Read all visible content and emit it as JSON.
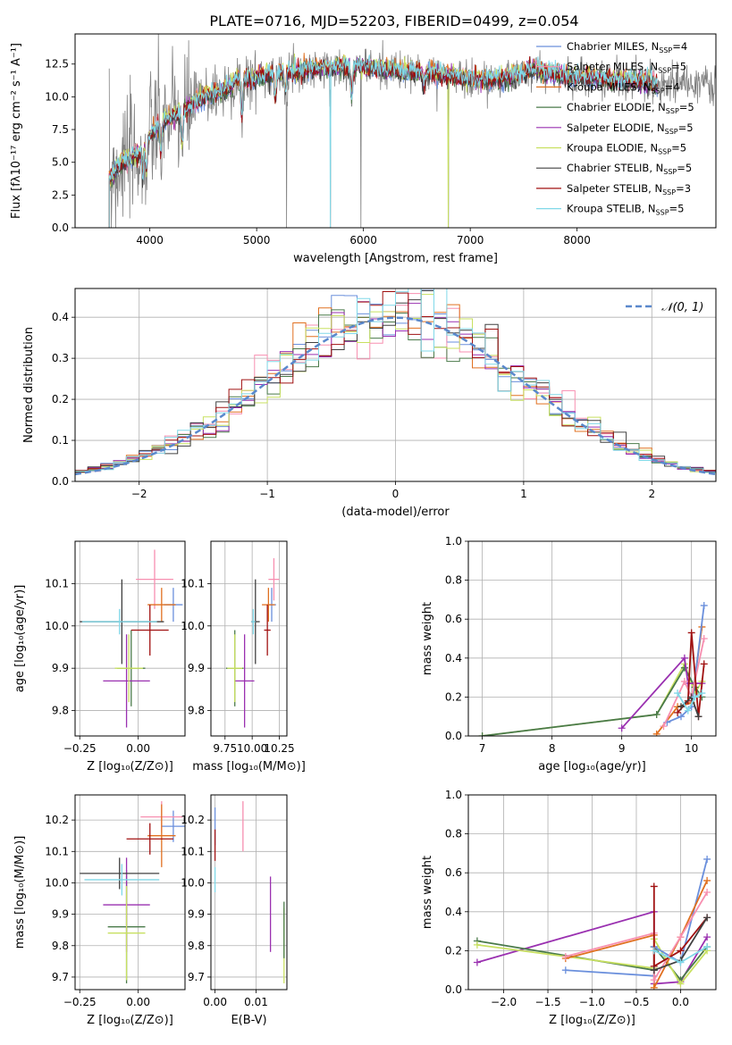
{
  "figure": {
    "title": "PLATE=0716, MJD=52203, FIBERID=0499, z=0.054"
  },
  "colors": {
    "chabrier_miles": "#6a8fdc",
    "salpeter_miles": "#f78fb0",
    "kroupa_miles": "#e07020",
    "chabrier_elodie": "#4a7a4a",
    "salpeter_elodie": "#9a30b0",
    "kroupa_elodie": "#c8e060",
    "chabrier_stelib": "#404040",
    "salpeter_stelib": "#a01010",
    "kroupa_stelib": "#80d8e8",
    "gaussian": "#5a88cc",
    "data_spectrum": "#808080",
    "grid": "#b0b0b0"
  },
  "chart_data": [
    {
      "id": "spectrum",
      "type": "line",
      "xlabel": "wavelength [Angstrom, rest frame]",
      "ylabel": "Flux [fλ10⁻¹⁷ erg cm⁻² s⁻¹ A⁻¹]",
      "xlim": [
        3300,
        9300
      ],
      "ylim": [
        0,
        14.8
      ],
      "xticks": [
        4000,
        5000,
        6000,
        7000,
        8000
      ],
      "yticks": [
        0.0,
        2.5,
        5.0,
        7.5,
        10.0,
        12.5
      ],
      "grid": false,
      "legend_position": "top-right",
      "legend": [
        {
          "label": "Chabrier MILES, N_SSP=4",
          "color_key": "chabrier_miles"
        },
        {
          "label": "Salpeter MILES, N_SSP=5",
          "color_key": "salpeter_miles"
        },
        {
          "label": "Kroupa MILES, N_SSP=4",
          "color_key": "kroupa_miles"
        },
        {
          "label": "Chabrier ELODIE, N_SSP=5",
          "color_key": "chabrier_elodie"
        },
        {
          "label": "Salpeter ELODIE, N_SSP=5",
          "color_key": "salpeter_elodie"
        },
        {
          "label": "Kroupa ELODIE, N_SSP=5",
          "color_key": "kroupa_elodie"
        },
        {
          "label": "Chabrier STELIB, N_SSP=5",
          "color_key": "chabrier_stelib"
        },
        {
          "label": "Salpeter STELIB, N_SSP=3",
          "color_key": "salpeter_stelib"
        },
        {
          "label": "Kroupa STELIB, N_SSP=5",
          "color_key": "kroupa_stelib"
        }
      ],
      "continuum": [
        [
          3620,
          3.6
        ],
        [
          3700,
          4.8
        ],
        [
          3800,
          5.2
        ],
        [
          3900,
          5.6
        ],
        [
          4000,
          7.0
        ],
        [
          4100,
          8.0
        ],
        [
          4200,
          8.4
        ],
        [
          4300,
          8.9
        ],
        [
          4400,
          9.4
        ],
        [
          4500,
          10.0
        ],
        [
          4700,
          10.5
        ],
        [
          4800,
          11.2
        ],
        [
          5000,
          11.5
        ],
        [
          5200,
          11.8
        ],
        [
          5400,
          12.0
        ],
        [
          5600,
          12.2
        ],
        [
          5800,
          12.3
        ],
        [
          6000,
          12.3
        ],
        [
          6200,
          12.1
        ],
        [
          6400,
          11.9
        ],
        [
          6600,
          11.8
        ],
        [
          6800,
          11.6
        ],
        [
          7000,
          11.4
        ],
        [
          7200,
          11.3
        ],
        [
          7400,
          11.6
        ],
        [
          7600,
          12.1
        ],
        [
          7800,
          11.7
        ],
        [
          8000,
          11.5
        ],
        [
          8200,
          11.4
        ],
        [
          8400,
          11.3
        ],
        [
          8600,
          11.2
        ],
        [
          8750,
          11.0
        ]
      ],
      "absorption_lines": [
        [
          3933,
          4.0
        ],
        [
          3968,
          4.4
        ],
        [
          4102,
          5.8
        ],
        [
          4304,
          6.4
        ],
        [
          4861,
          8.6
        ],
        [
          5175,
          9.8
        ],
        [
          5270,
          10.4
        ],
        [
          5890,
          10.0
        ],
        [
          6563,
          10.9
        ]
      ],
      "data_spikes": [
        [
          5280,
          0.0
        ],
        [
          5977,
          0.0
        ],
        [
          6795,
          0.0
        ],
        [
          5693,
          0.0
        ]
      ],
      "data_range": [
        3620,
        9300
      ],
      "model_range": [
        3620,
        8750
      ]
    },
    {
      "id": "residuals",
      "type": "step-histogram",
      "xlabel": "(data-model)/error",
      "ylabel": "Normed distribution",
      "xlim": [
        -2.5,
        2.5
      ],
      "ylim": [
        0,
        0.47
      ],
      "xticks": [
        -2,
        -1,
        0,
        1,
        2
      ],
      "xticklabels": [
        "−2",
        "−1",
        "0",
        "1",
        "2"
      ],
      "yticks": [
        0.0,
        0.1,
        0.2,
        0.3,
        0.4
      ],
      "grid": true,
      "legend_position": "top-right",
      "gaussian_label": "𝒩(0, 1)",
      "bin_width": 0.1
    },
    {
      "id": "age-vs-Z",
      "type": "scatter",
      "xlabel": "Z [log₁₀(Z/Z⊙)]",
      "ylabel": "age  [log₁₀(age/yr)]",
      "xlim": [
        -0.27,
        0.2
      ],
      "ylim": [
        9.74,
        10.2
      ],
      "xticks": [
        -0.25,
        0.0
      ],
      "xticklabels": [
        "−0.25",
        "0.00"
      ],
      "yticks": [
        9.8,
        9.9,
        10.0,
        10.1
      ],
      "grid": true,
      "points": [
        {
          "c": "chabrier_miles",
          "x": 0.15,
          "y": 10.05,
          "xe": 0.04,
          "ye": 0.04
        },
        {
          "c": "salpeter_miles",
          "x": 0.07,
          "y": 10.11,
          "xe": 0.08,
          "ye": 0.07
        },
        {
          "c": "kroupa_miles",
          "x": 0.1,
          "y": 10.05,
          "xe": 0.06,
          "ye": 0.04
        },
        {
          "c": "chabrier_elodie",
          "x": -0.03,
          "y": 9.9,
          "xe": 0.06,
          "ye": 0.09
        },
        {
          "c": "salpeter_elodie",
          "x": -0.05,
          "y": 9.87,
          "xe": 0.1,
          "ye": 0.11
        },
        {
          "c": "kroupa_elodie",
          "x": -0.04,
          "y": 9.9,
          "xe": 0.06,
          "ye": 0.08
        },
        {
          "c": "chabrier_stelib",
          "x": -0.07,
          "y": 10.01,
          "xe": 0.18,
          "ye": 0.1
        },
        {
          "c": "salpeter_stelib",
          "x": 0.05,
          "y": 9.99,
          "xe": 0.08,
          "ye": 0.06
        },
        {
          "c": "kroupa_stelib",
          "x": -0.08,
          "y": 10.01,
          "xe": 0.16,
          "ye": 0.03
        }
      ]
    },
    {
      "id": "age-vs-mass",
      "type": "scatter",
      "xlabel": "mass [log₁₀(M/M⊙)]",
      "ylabel": "",
      "xlim": [
        9.62,
        10.32
      ],
      "ylim": [
        9.74,
        10.2
      ],
      "xticks": [
        9.75,
        10.0,
        10.25
      ],
      "xticklabels": [
        "9.75",
        "10.00",
        "10.25"
      ],
      "yticks": [
        9.8,
        9.9,
        10.0,
        10.1
      ],
      "grid": true,
      "points": [
        {
          "c": "chabrier_miles",
          "x": 10.18,
          "y": 10.05,
          "xe": 0.04,
          "ye": 0.04
        },
        {
          "c": "salpeter_miles",
          "x": 10.2,
          "y": 10.11,
          "xe": 0.05,
          "ye": 0.05
        },
        {
          "c": "kroupa_miles",
          "x": 10.15,
          "y": 10.05,
          "xe": 0.06,
          "ye": 0.04
        },
        {
          "c": "chabrier_elodie",
          "x": 9.84,
          "y": 9.9,
          "xe": 0.08,
          "ye": 0.09
        },
        {
          "c": "salpeter_elodie",
          "x": 9.93,
          "y": 9.87,
          "xe": 0.09,
          "ye": 0.11
        },
        {
          "c": "kroupa_elodie",
          "x": 9.84,
          "y": 9.9,
          "xe": 0.07,
          "ye": 0.08
        },
        {
          "c": "chabrier_stelib",
          "x": 10.03,
          "y": 10.01,
          "xe": 0.04,
          "ye": 0.1
        },
        {
          "c": "salpeter_stelib",
          "x": 10.14,
          "y": 9.99,
          "xe": 0.03,
          "ye": 0.06
        },
        {
          "c": "kroupa_stelib",
          "x": 10.01,
          "y": 10.01,
          "xe": 0.02,
          "ye": 0.03
        }
      ]
    },
    {
      "id": "weight-vs-age",
      "type": "line",
      "xlabel": "age  [log₁₀(age/yr)]",
      "ylabel": "mass weight",
      "xlim": [
        6.8,
        10.35
      ],
      "ylim": [
        0,
        1.0
      ],
      "xticks": [
        7,
        8,
        9,
        10
      ],
      "yticks": [
        0.0,
        0.2,
        0.4,
        0.6,
        0.8,
        1.0
      ],
      "grid": true,
      "series": [
        {
          "c": "kroupa_elodie",
          "pts": [
            [
              7.0,
              0.0
            ],
            [
              9.5,
              0.11
            ],
            [
              9.9,
              0.37
            ],
            [
              10.05,
              0.22
            ],
            [
              10.15,
              0.28
            ]
          ]
        },
        {
          "c": "chabrier_elodie",
          "pts": [
            [
              7.0,
              0.0
            ],
            [
              9.5,
              0.11
            ],
            [
              9.9,
              0.35
            ],
            [
              10.05,
              0.25
            ],
            [
              10.15,
              0.2
            ]
          ]
        },
        {
          "c": "salpeter_elodie",
          "pts": [
            [
              9.0,
              0.04
            ],
            [
              9.9,
              0.4
            ],
            [
              9.95,
              0.27
            ],
            [
              10.15,
              0.27
            ]
          ]
        },
        {
          "c": "kroupa_miles",
          "pts": [
            [
              9.5,
              0.01
            ],
            [
              9.8,
              0.15
            ],
            [
              10.0,
              0.17
            ],
            [
              10.15,
              0.56
            ]
          ]
        },
        {
          "c": "chabrier_miles",
          "pts": [
            [
              9.65,
              0.07
            ],
            [
              9.85,
              0.1
            ],
            [
              10.0,
              0.15
            ],
            [
              10.18,
              0.67
            ]
          ]
        },
        {
          "c": "salpeter_miles",
          "pts": [
            [
              9.6,
              0.05
            ],
            [
              9.9,
              0.28
            ],
            [
              10.0,
              0.2
            ],
            [
              10.18,
              0.5
            ]
          ]
        },
        {
          "c": "salpeter_stelib",
          "pts": [
            [
              9.8,
              0.12
            ],
            [
              9.95,
              0.18
            ],
            [
              10.0,
              0.53
            ],
            [
              10.1,
              0.1
            ],
            [
              10.18,
              0.37
            ]
          ]
        },
        {
          "c": "chabrier_stelib",
          "pts": [
            [
              9.85,
              0.15
            ],
            [
              10.0,
              0.2
            ],
            [
              10.1,
              0.1
            ]
          ]
        },
        {
          "c": "kroupa_stelib",
          "pts": [
            [
              9.8,
              0.22
            ],
            [
              9.95,
              0.13
            ],
            [
              10.05,
              0.2
            ],
            [
              10.15,
              0.22
            ]
          ]
        }
      ]
    },
    {
      "id": "mass-vs-Z",
      "type": "scatter",
      "xlabel": "Z [log₁₀(Z/Z⊙)]",
      "ylabel": "mass [log₁₀(M/M⊙)]",
      "xlim": [
        -0.27,
        0.2
      ],
      "ylim": [
        9.66,
        10.28
      ],
      "xticks": [
        -0.25,
        0.0
      ],
      "xticklabels": [
        "−0.25",
        "0.00"
      ],
      "yticks": [
        9.7,
        9.8,
        9.9,
        10.0,
        10.1,
        10.2
      ],
      "grid": true,
      "points": [
        {
          "c": "chabrier_miles",
          "x": 0.15,
          "y": 10.18,
          "xe": 0.05,
          "ye": 0.05
        },
        {
          "c": "salpeter_miles",
          "x": 0.1,
          "y": 10.21,
          "xe": 0.09,
          "ye": 0.05
        },
        {
          "c": "kroupa_miles",
          "x": 0.1,
          "y": 10.15,
          "xe": 0.06,
          "ye": 0.1
        },
        {
          "c": "chabrier_elodie",
          "x": -0.05,
          "y": 9.86,
          "xe": 0.08,
          "ye": 0.18
        },
        {
          "c": "salpeter_elodie",
          "x": -0.05,
          "y": 9.93,
          "xe": 0.1,
          "ye": 0.15
        },
        {
          "c": "kroupa_elodie",
          "x": -0.05,
          "y": 9.84,
          "xe": 0.08,
          "ye": 0.15
        },
        {
          "c": "chabrier_stelib",
          "x": -0.08,
          "y": 10.03,
          "xe": 0.17,
          "ye": 0.05
        },
        {
          "c": "salpeter_stelib",
          "x": 0.05,
          "y": 10.14,
          "xe": 0.1,
          "ye": 0.05
        },
        {
          "c": "kroupa_stelib",
          "x": -0.07,
          "y": 10.01,
          "xe": 0.16,
          "ye": 0.05
        }
      ]
    },
    {
      "id": "mass-vs-ebv",
      "type": "scatter",
      "xlabel": "E(B-V)",
      "ylabel": "",
      "xlim": [
        -0.001,
        0.0175
      ],
      "ylim": [
        9.66,
        10.28
      ],
      "xticks": [
        0.0,
        0.01
      ],
      "xticklabels": [
        "0.00",
        "0.01"
      ],
      "yticks": [
        9.7,
        9.8,
        9.9,
        10.0,
        10.1,
        10.2
      ],
      "grid": true,
      "points": [
        {
          "c": "chabrier_miles",
          "x": 0.0,
          "y": 10.18,
          "xe": 0.0,
          "ye": 0.06
        },
        {
          "c": "salpeter_miles",
          "x": 0.0068,
          "y": 10.18,
          "xe": 0.0,
          "ye": 0.08
        },
        {
          "c": "salpeter_stelib",
          "x": 0.0,
          "y": 10.12,
          "xe": 0.0,
          "ye": 0.05
        },
        {
          "c": "kroupa_stelib",
          "x": 0.0,
          "y": 10.01,
          "xe": 0.0,
          "ye": 0.04
        },
        {
          "c": "salpeter_elodie",
          "x": 0.0135,
          "y": 9.9,
          "xe": 0.0,
          "ye": 0.12
        },
        {
          "c": "kroupa_elodie",
          "x": 0.0168,
          "y": 9.8,
          "xe": 0.0,
          "ye": 0.12
        },
        {
          "c": "chabrier_elodie",
          "x": 0.0168,
          "y": 9.85,
          "xe": 0.0,
          "ye": 0.09
        }
      ]
    },
    {
      "id": "weight-vs-Z",
      "type": "line",
      "xlabel": "Z [log₁₀(Z/Z⊙)]",
      "ylabel": "mass weight",
      "xlim": [
        -2.4,
        0.4
      ],
      "ylim": [
        0,
        1.0
      ],
      "xticks": [
        -2.0,
        -1.5,
        -1.0,
        -0.5,
        0.0
      ],
      "xticklabels": [
        "−2.0",
        "−1.5",
        "−1.0",
        "−0.5",
        "0.0"
      ],
      "yticks": [
        0.0,
        0.2,
        0.4,
        0.6,
        0.8,
        1.0
      ],
      "grid": true,
      "series": [
        {
          "c": "salpeter_elodie",
          "pts": [
            [
              -2.3,
              0.14
            ],
            [
              -0.3,
              0.4
            ],
            [
              -0.3,
              0.03
            ],
            [
              0.0,
              0.04
            ],
            [
              0.3,
              0.27
            ]
          ]
        },
        {
          "c": "chabrier_elodie",
          "pts": [
            [
              -2.3,
              0.25
            ],
            [
              -0.3,
              0.1
            ],
            [
              -0.3,
              0.22
            ],
            [
              0.0,
              0.05
            ],
            [
              0.3,
              0.22
            ]
          ]
        },
        {
          "c": "kroupa_elodie",
          "pts": [
            [
              -2.3,
              0.23
            ],
            [
              -0.3,
              0.11
            ],
            [
              -0.3,
              0.26
            ],
            [
              0.0,
              0.03
            ],
            [
              0.3,
              0.2
            ]
          ]
        },
        {
          "c": "chabrier_miles",
          "pts": [
            [
              -1.3,
              0.1
            ],
            [
              -0.3,
              0.07
            ],
            [
              -0.3,
              0.22
            ],
            [
              0.0,
              0.14
            ],
            [
              0.3,
              0.67
            ]
          ]
        },
        {
          "c": "kroupa_miles",
          "pts": [
            [
              -1.3,
              0.16
            ],
            [
              -0.3,
              0.28
            ],
            [
              -0.3,
              0.01
            ],
            [
              0.0,
              0.27
            ],
            [
              0.3,
              0.56
            ]
          ]
        },
        {
          "c": "salpeter_miles",
          "pts": [
            [
              -1.3,
              0.17
            ],
            [
              -0.3,
              0.29
            ],
            [
              -0.3,
              0.05
            ],
            [
              0.0,
              0.27
            ],
            [
              0.3,
              0.5
            ]
          ]
        },
        {
          "c": "salpeter_stelib",
          "pts": [
            [
              -0.3,
              0.53
            ],
            [
              -0.3,
              0.12
            ],
            [
              0.0,
              0.2
            ],
            [
              0.3,
              0.37
            ]
          ]
        },
        {
          "c": "chabrier_stelib",
          "pts": [
            [
              -0.3,
              0.1
            ],
            [
              0.0,
              0.15
            ],
            [
              0.3,
              0.37
            ]
          ]
        },
        {
          "c": "kroupa_stelib",
          "pts": [
            [
              -0.3,
              0.2
            ],
            [
              0.0,
              0.14
            ],
            [
              0.3,
              0.22
            ]
          ]
        }
      ]
    }
  ]
}
